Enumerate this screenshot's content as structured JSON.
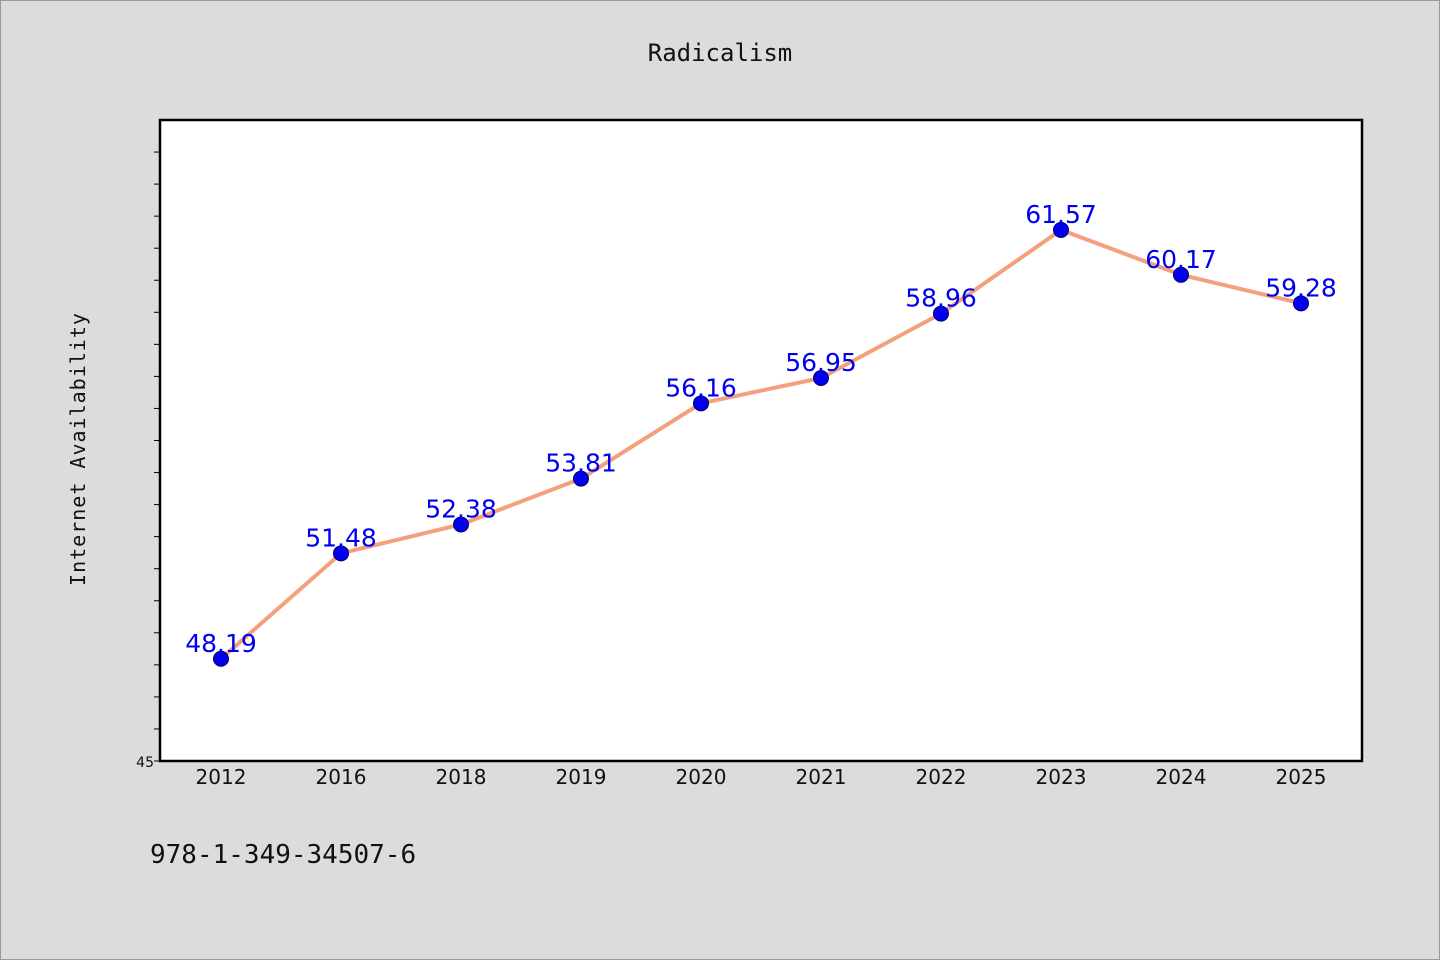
{
  "chart_data": {
    "type": "line",
    "title": "Radicalism",
    "ylabel": "Internet Availability",
    "xlabel": "",
    "categories": [
      "2012",
      "2016",
      "2018",
      "2019",
      "2020",
      "2021",
      "2022",
      "2023",
      "2024",
      "2025"
    ],
    "series": [
      {
        "values": [
          48.19,
          51.48,
          52.38,
          53.81,
          56.16,
          56.95,
          58.96,
          61.57,
          60.17,
          59.28
        ],
        "value_labels": [
          "48.19",
          "51.48",
          "52.38",
          "53.81",
          "56.16",
          "56.95",
          "58.96",
          "61.57",
          "60.17",
          "59.28"
        ],
        "line_color": "#f4a07c",
        "marker_color": "#0000ee",
        "label_color": "#0000ee"
      }
    ],
    "ylim": [
      45,
      65
    ],
    "y_tick_label": "45",
    "grid": false,
    "legend": "none"
  },
  "footer": {
    "code": "978-1-349-34507-6"
  }
}
